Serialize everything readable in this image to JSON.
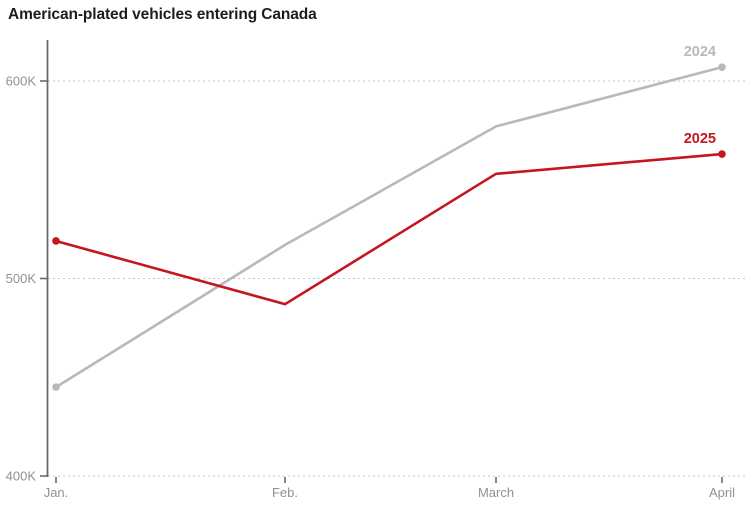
{
  "title": "American-plated vehicles entering Canada",
  "chart_data": {
    "type": "line",
    "title": "American-plated vehicles entering Canada",
    "categories": [
      "Jan.",
      "Feb.",
      "March",
      "April"
    ],
    "series": [
      {
        "name": "2024",
        "color": "#b9b9b9",
        "values": [
          445000,
          517000,
          577000,
          607000
        ]
      },
      {
        "name": "2025",
        "color": "#c4161f",
        "values": [
          519000,
          487000,
          553000,
          563000
        ]
      }
    ],
    "xlabel": "",
    "ylabel": "",
    "y_ticks": [
      {
        "value": 400000,
        "label": "400K"
      },
      {
        "value": 500000,
        "label": "500K"
      },
      {
        "value": 600000,
        "label": "600K"
      }
    ],
    "ylim": [
      400000,
      622000
    ],
    "grid": "horizontal dotted",
    "legend_position": "labels at line ends",
    "marker_style": "dots on first and last points"
  },
  "colors": {
    "gridline": "#bcc9cd",
    "axis": "#6a6a6a",
    "axis_text": "#8e9196",
    "title_text": "#1d1d1d"
  }
}
